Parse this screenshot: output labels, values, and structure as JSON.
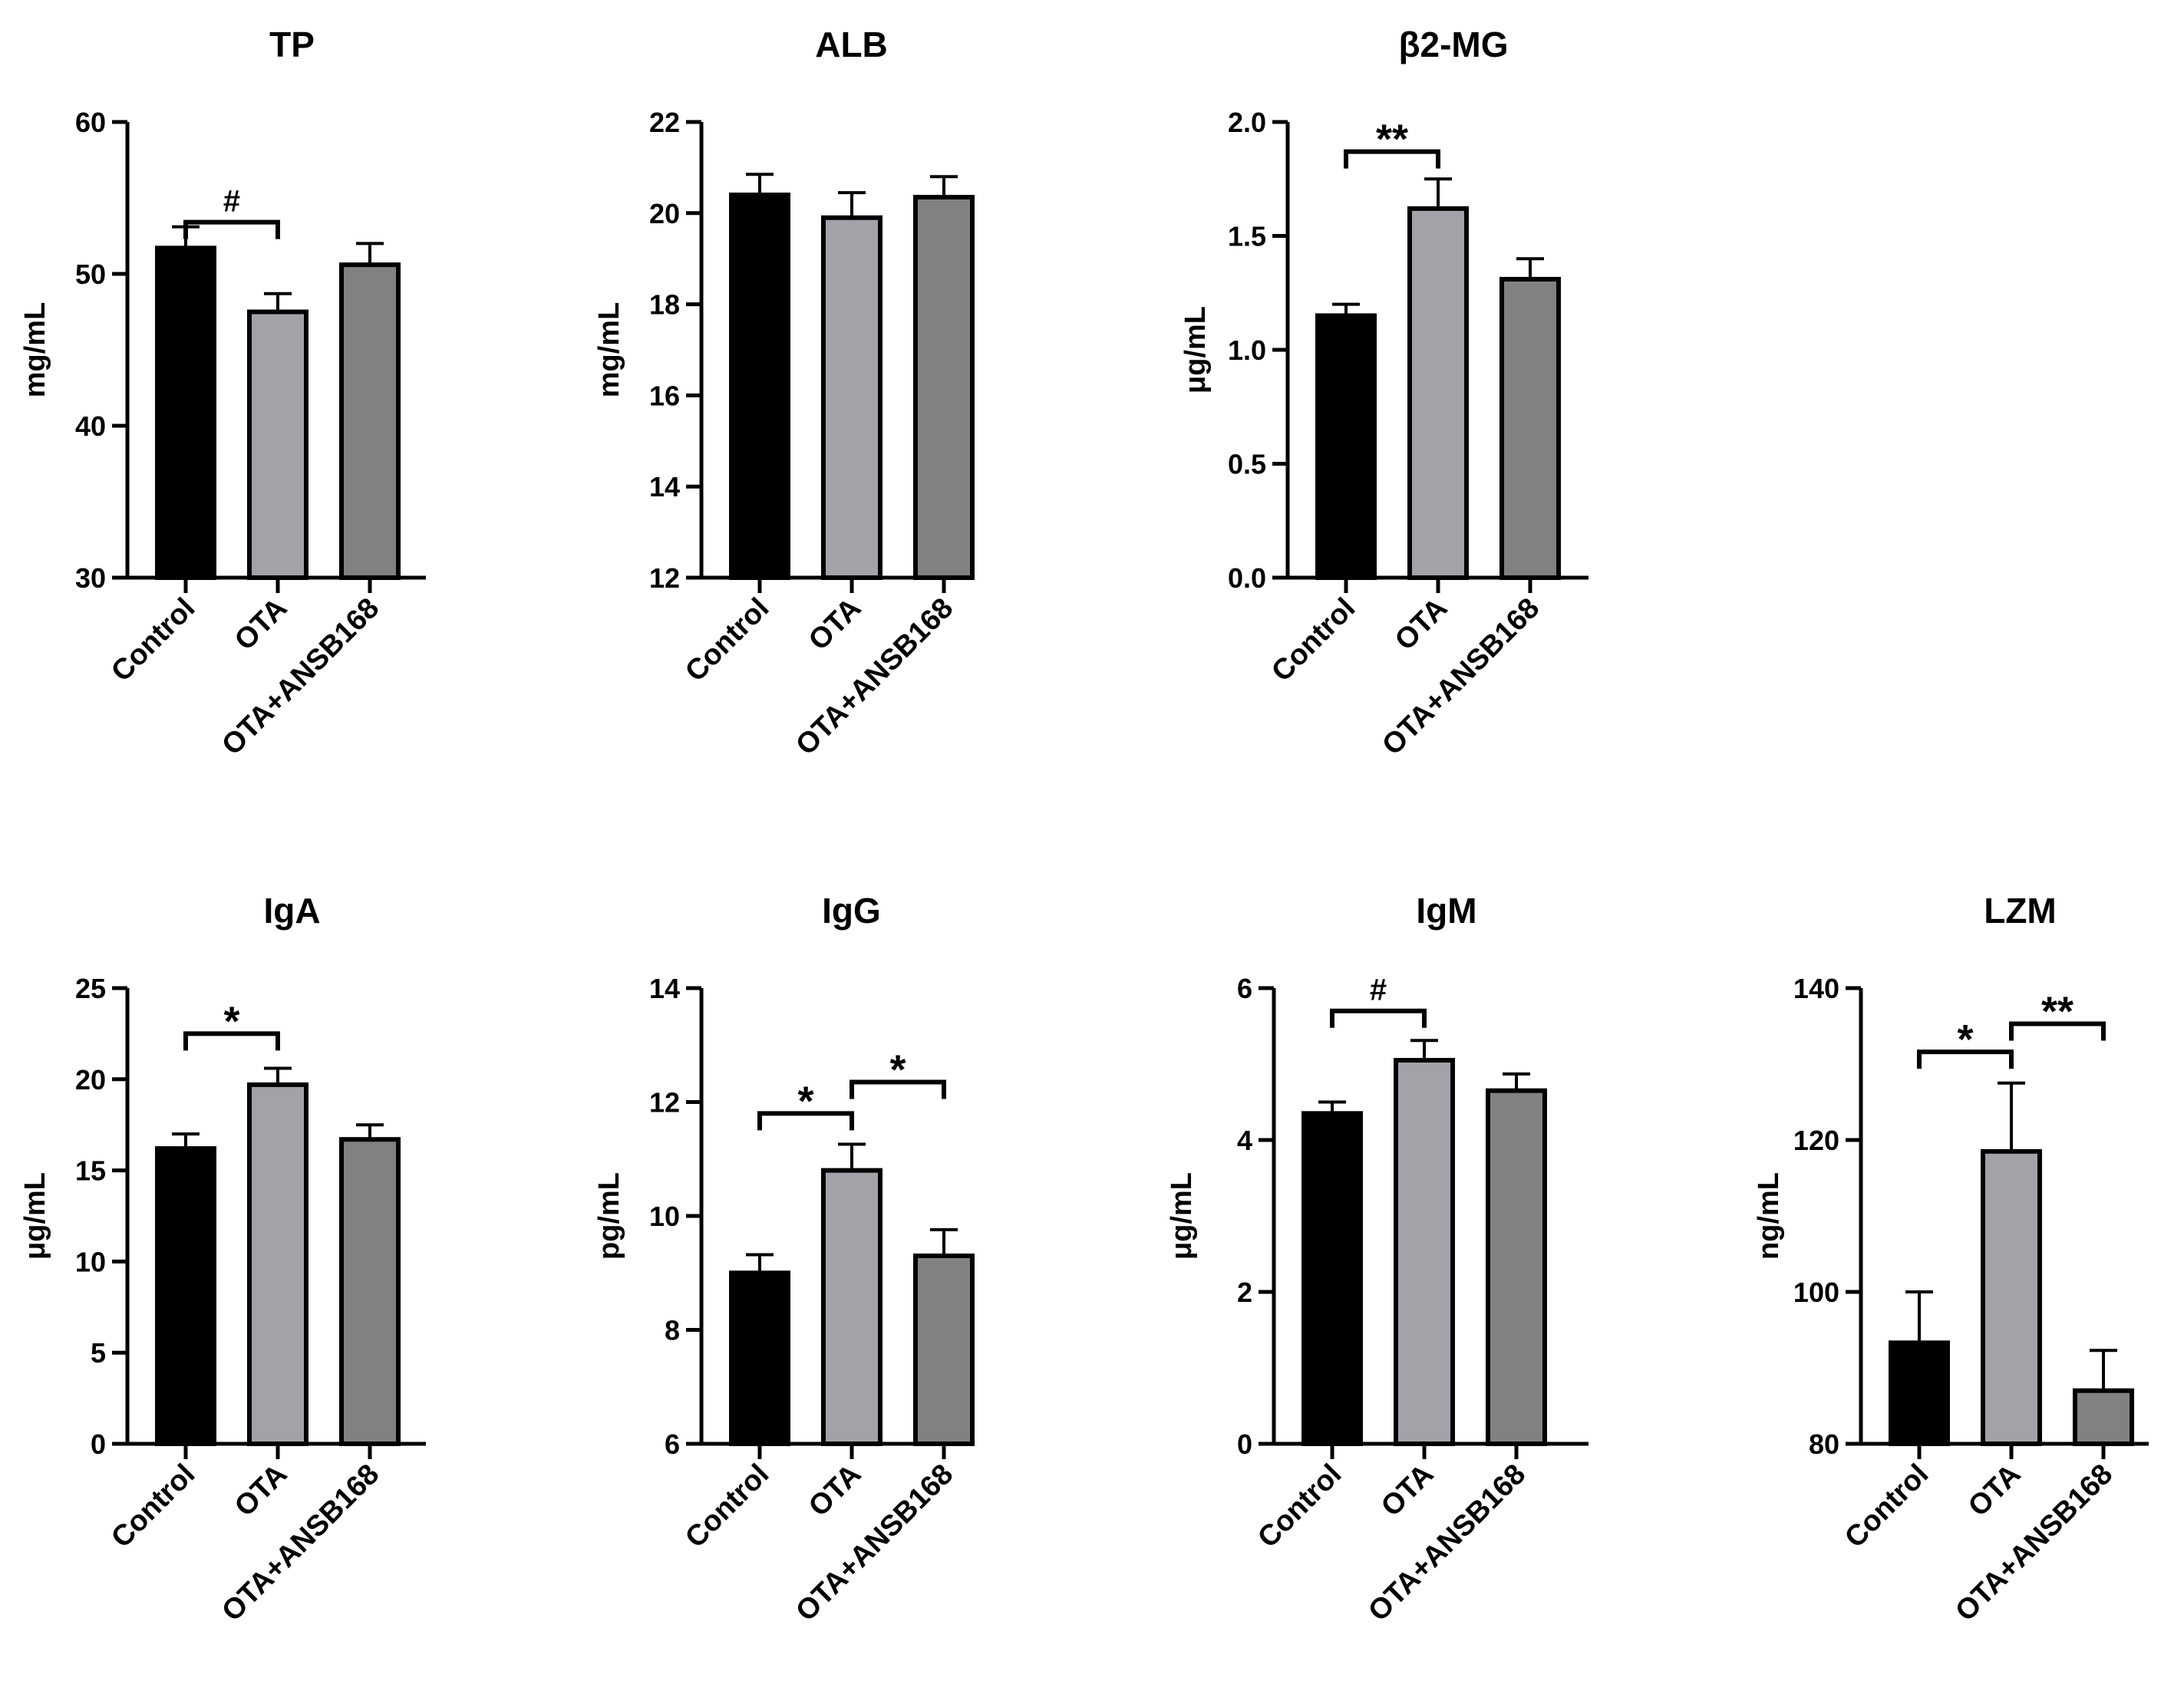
{
  "figure": {
    "type": "multi-panel bar chart"
  },
  "colors": {
    "Control": "#000000",
    "OTA": "#a3a2a8",
    "OTA+ANSB168": "#818181",
    "axis": "#000000"
  },
  "chart_data": [
    {
      "type": "bar",
      "title": "TP",
      "ylabel": "mg/mL",
      "categories": [
        "Control",
        "OTA",
        "OTA+ANSB168"
      ],
      "values": [
        51.7,
        47.5,
        50.6
      ],
      "errors": [
        1.4,
        1.2,
        1.4
      ],
      "ylim": [
        30,
        60
      ],
      "yticks": [
        30,
        40,
        50,
        60
      ],
      "ytick_labels": [
        "30",
        "40",
        "50",
        "60"
      ],
      "annotations": [
        {
          "from": 0,
          "to": 1,
          "label": "#",
          "y": 53.4
        }
      ]
    },
    {
      "type": "bar",
      "title": "ALB",
      "ylabel": "mg/mL",
      "categories": [
        "Control",
        "OTA",
        "OTA+ANSB168"
      ],
      "values": [
        20.4,
        19.9,
        20.35
      ],
      "errors": [
        0.45,
        0.55,
        0.45
      ],
      "ylim": [
        12,
        22
      ],
      "yticks": [
        12,
        14,
        16,
        18,
        20,
        22
      ],
      "ytick_labels": [
        "12",
        "14",
        "16",
        "18",
        "20",
        "22"
      ],
      "annotations": []
    },
    {
      "type": "bar",
      "title": "β2-MG",
      "ylabel": "μg/mL",
      "categories": [
        "Control",
        "OTA",
        "OTA+ANSB168"
      ],
      "values": [
        1.15,
        1.62,
        1.31
      ],
      "errors": [
        0.05,
        0.13,
        0.09
      ],
      "ylim": [
        0,
        2.0
      ],
      "yticks": [
        0,
        0.5,
        1.0,
        1.5,
        2.0
      ],
      "ytick_labels": [
        "0.0",
        "0.5",
        "1.0",
        "1.5",
        "2.0"
      ],
      "annotations": [
        {
          "from": 0,
          "to": 1,
          "label": "**",
          "y": 1.87
        }
      ]
    },
    {
      "type": "bar",
      "title": "IgA",
      "ylabel": "μg/mL",
      "categories": [
        "Control",
        "OTA",
        "OTA+ANSB168"
      ],
      "values": [
        16.2,
        19.7,
        16.7
      ],
      "errors": [
        0.8,
        0.9,
        0.8
      ],
      "ylim": [
        0,
        25
      ],
      "yticks": [
        0,
        5,
        10,
        15,
        20,
        25
      ],
      "ytick_labels": [
        "0",
        "5",
        "10",
        "15",
        "20",
        "25"
      ],
      "annotations": [
        {
          "from": 0,
          "to": 1,
          "label": "*",
          "y": 22.5
        }
      ]
    },
    {
      "type": "bar",
      "title": "IgG",
      "ylabel": "pg/mL",
      "categories": [
        "Control",
        "OTA",
        "OTA+ANSB168"
      ],
      "values": [
        9.0,
        10.8,
        9.3
      ],
      "errors": [
        0.32,
        0.46,
        0.46
      ],
      "ylim": [
        6,
        14
      ],
      "yticks": [
        6,
        8,
        10,
        12,
        14
      ],
      "ytick_labels": [
        "6",
        "8",
        "10",
        "12",
        "14"
      ],
      "annotations": [
        {
          "from": 0,
          "to": 1,
          "label": "*",
          "y": 11.8
        },
        {
          "from": 1,
          "to": 2,
          "label": "*",
          "y": 12.35
        }
      ]
    },
    {
      "type": "bar",
      "title": "IgM",
      "ylabel": "μg/mL",
      "categories": [
        "Control",
        "OTA",
        "OTA+ANSB168"
      ],
      "values": [
        4.35,
        5.05,
        4.65
      ],
      "errors": [
        0.15,
        0.26,
        0.22
      ],
      "ylim": [
        0,
        6
      ],
      "yticks": [
        0,
        2,
        4,
        6
      ],
      "ytick_labels": [
        "0",
        "2",
        "4",
        "6"
      ],
      "annotations": [
        {
          "from": 0,
          "to": 1,
          "label": "#",
          "y": 5.7
        }
      ]
    },
    {
      "type": "bar",
      "title": "LZM",
      "ylabel": "ng/mL",
      "categories": [
        "Control",
        "OTA",
        "OTA+ANSB168"
      ],
      "values": [
        93.3,
        118.5,
        87.0
      ],
      "errors": [
        6.7,
        9.0,
        5.3
      ],
      "ylim": [
        80,
        140
      ],
      "yticks": [
        80,
        100,
        120,
        140
      ],
      "ytick_labels": [
        "80",
        "100",
        "120",
        "140"
      ],
      "annotations": [
        {
          "from": 0,
          "to": 1,
          "label": "*",
          "y": 131.6
        },
        {
          "from": 1,
          "to": 2,
          "label": "**",
          "y": 135.3
        }
      ]
    }
  ]
}
